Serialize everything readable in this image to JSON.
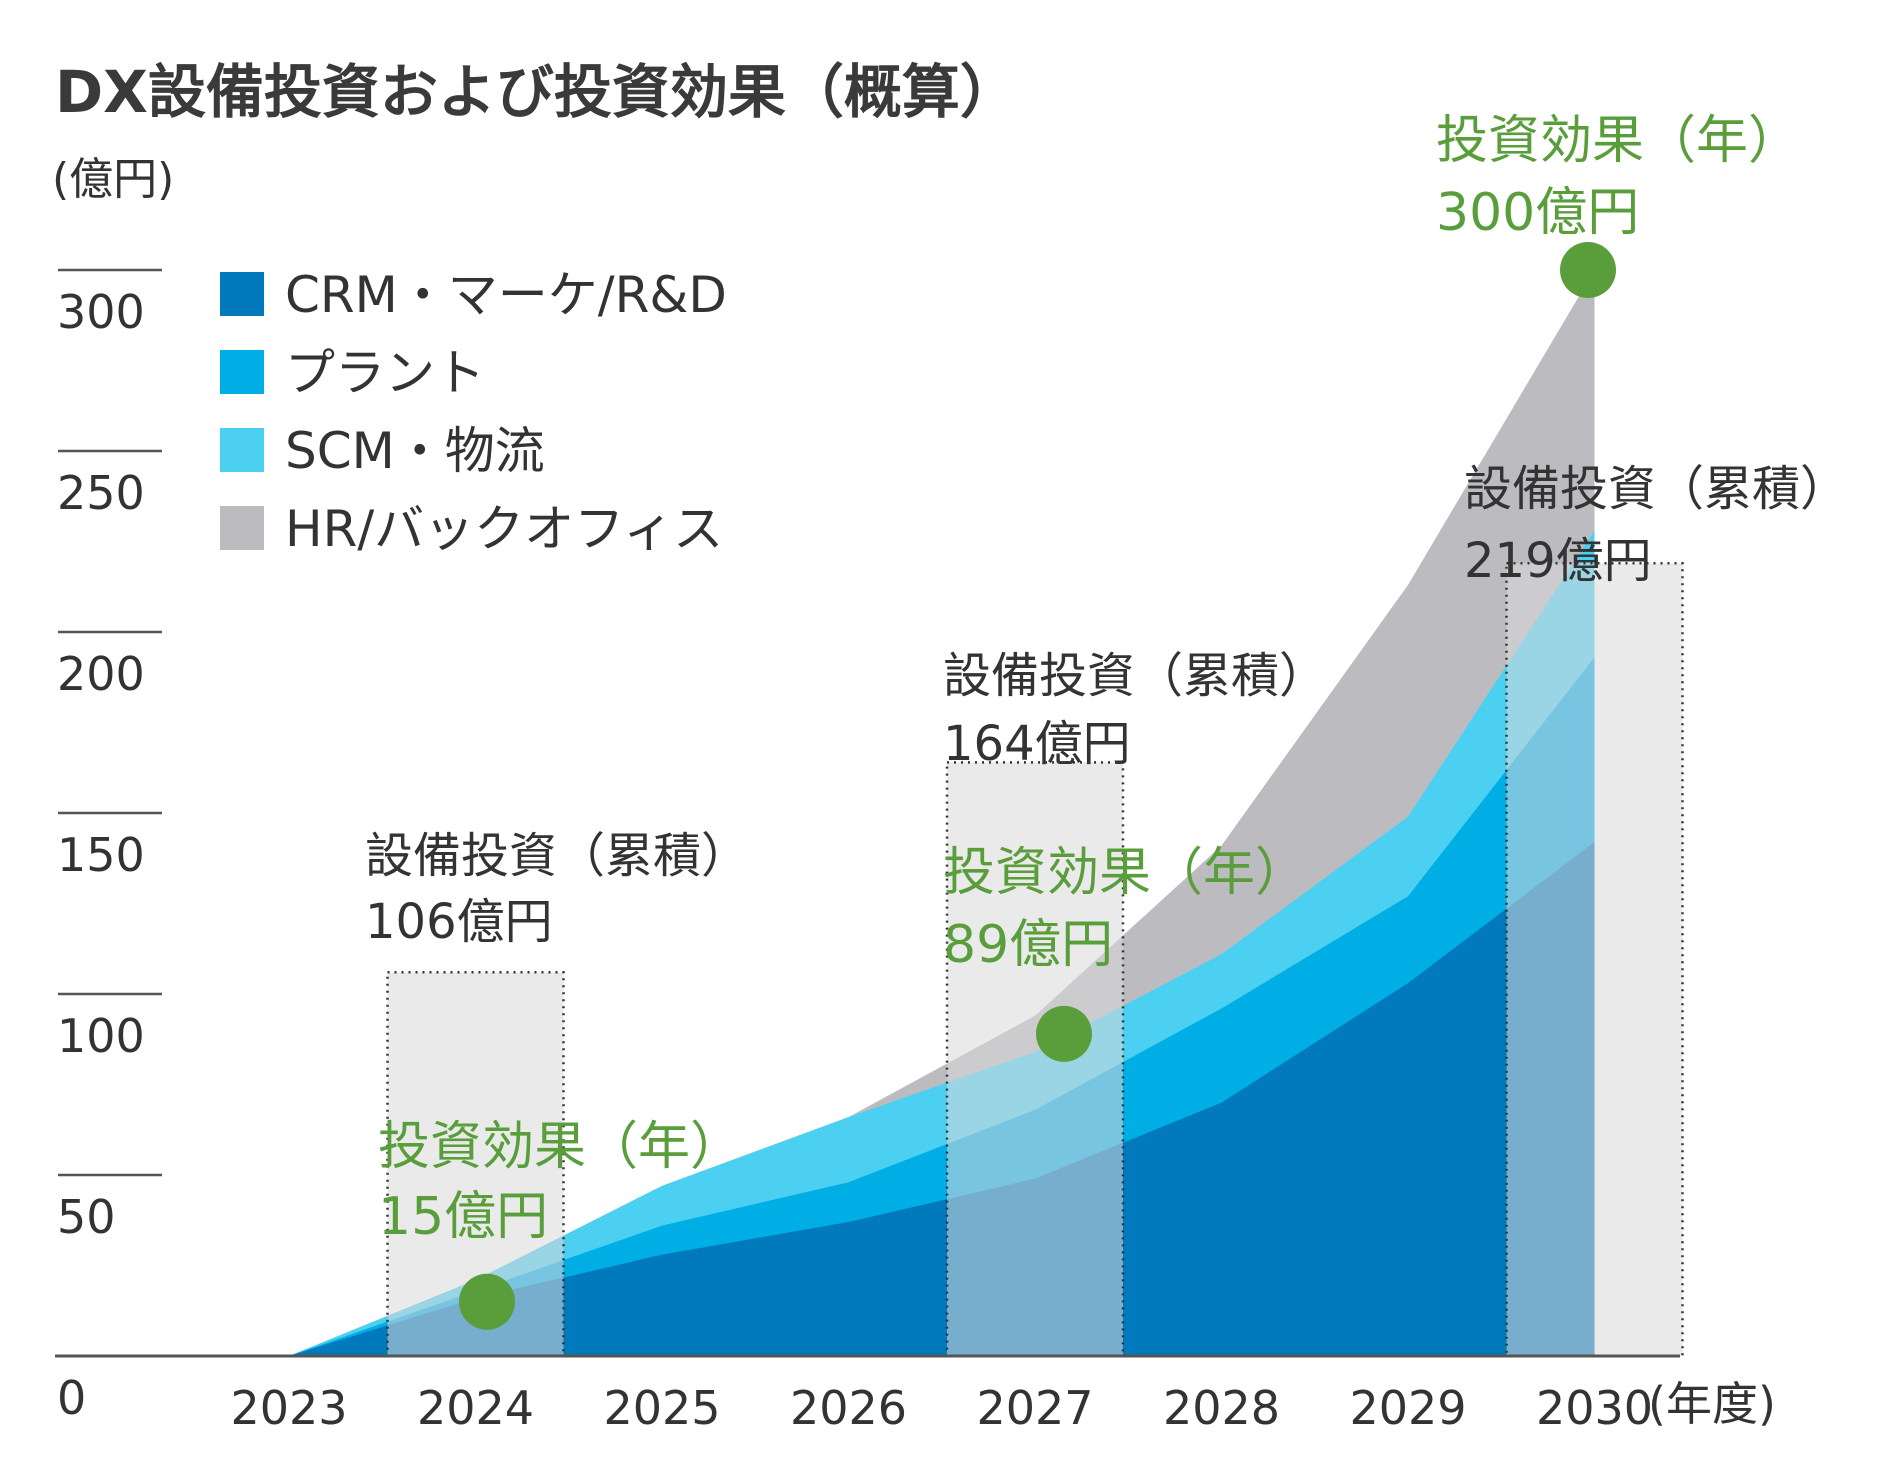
{
  "chart_data": {
    "type": "area",
    "title": "DX設備投資および投資効果（概算）",
    "y_unit": "(億円)",
    "x_unit": "(年度)",
    "categories": [
      "2023",
      "2024",
      "2025",
      "2026",
      "2027",
      "2028",
      "2029",
      "2030"
    ],
    "yticks": [
      "0",
      "50",
      "100",
      "150",
      "200",
      "250",
      "300"
    ],
    "ylim": [
      0,
      300
    ],
    "series": [
      {
        "name": "CRM・マーケ/R&D",
        "color": "#0079bd",
        "values": [
          0,
          16,
          28,
          37,
          49,
          70,
          103,
          142
        ]
      },
      {
        "name": "プラント",
        "color": "#00aee6",
        "values": [
          0,
          18,
          36,
          48,
          68,
          96,
          127,
          193
        ]
      },
      {
        "name": "SCM・物流",
        "color": "#4cd0f2",
        "values": [
          0,
          21,
          47,
          66,
          84,
          111,
          149,
          228
        ]
      },
      {
        "name": "HR/バックオフィス",
        "color": "#bcbcc0",
        "values": [
          0,
          21,
          47,
          66,
          94,
          141,
          213,
          300
        ]
      }
    ],
    "investment_bars": [
      {
        "year": "2024",
        "label": "設備投資（累積）",
        "value_label": "106億円",
        "value": 106
      },
      {
        "year": "2027",
        "label": "設備投資（累積）",
        "value_label": "164億円",
        "value": 164
      },
      {
        "year": "2030",
        "label": "設備投資（累積）",
        "value_label": "219億円",
        "value": 219
      }
    ],
    "effect_points": [
      {
        "year": "2024",
        "label": "投資効果（年）",
        "value_label": "15億円",
        "value": 15
      },
      {
        "year": "2027",
        "label": "投資効果（年）",
        "value_label": "89億円",
        "value": 89
      },
      {
        "year": "2030",
        "label": "投資効果（年）",
        "value_label": "300億円",
        "value": 300
      }
    ],
    "colors": {
      "effect": "#5a9e3c",
      "bar_fill": "#d9d9db",
      "axis": "#555555"
    },
    "legend_position": "top-left",
    "grid": false
  }
}
